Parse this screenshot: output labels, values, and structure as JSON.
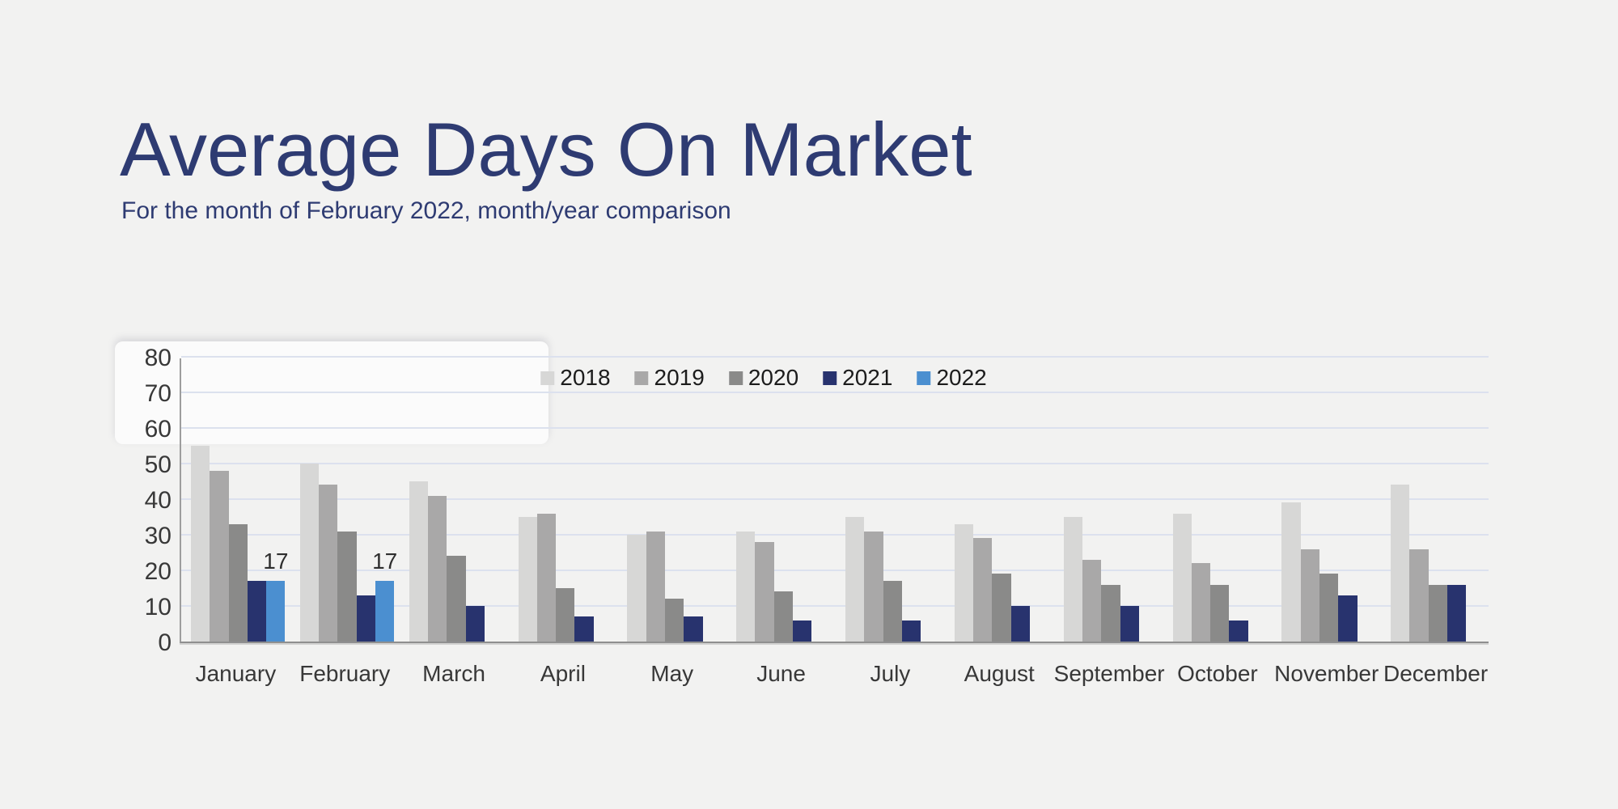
{
  "header": {
    "title": "Average Days On Market",
    "subtitle": "For the month of February 2022, month/year comparison",
    "title_color": "#2e3b72"
  },
  "chart_data": {
    "type": "bar",
    "title": "Average Days On Market",
    "subtitle": "For the month of February 2022, month/year comparison",
    "categories": [
      "January",
      "February",
      "March",
      "April",
      "May",
      "June",
      "July",
      "August",
      "September",
      "October",
      "November",
      "December"
    ],
    "series": [
      {
        "name": "2018",
        "color": "#d7d7d6",
        "values": [
          55,
          50,
          45,
          35,
          30,
          31,
          35,
          33,
          35,
          36,
          39,
          44
        ]
      },
      {
        "name": "2019",
        "color": "#a9a8a8",
        "values": [
          48,
          44,
          41,
          36,
          31,
          28,
          31,
          29,
          23,
          22,
          26,
          26
        ]
      },
      {
        "name": "2020",
        "color": "#8a8a89",
        "values": [
          33,
          31,
          24,
          15,
          12,
          14,
          17,
          19,
          16,
          16,
          19,
          16
        ]
      },
      {
        "name": "2021",
        "color": "#28336e",
        "values": [
          17,
          13,
          10,
          7,
          7,
          6,
          6,
          10,
          10,
          6,
          13,
          16
        ]
      },
      {
        "name": "2022",
        "color": "#4b8fd0",
        "values": [
          17,
          17,
          null,
          null,
          null,
          null,
          null,
          null,
          null,
          null,
          null,
          null
        ],
        "show_value_labels": true
      }
    ],
    "data_labels": [
      {
        "series": "2022",
        "category": "January",
        "text": "17"
      },
      {
        "series": "2022",
        "category": "February",
        "text": "17"
      }
    ],
    "ylabel": "",
    "xlabel": "",
    "ylim": [
      0,
      80
    ],
    "yticks": [
      0,
      10,
      20,
      30,
      40,
      50,
      60,
      70,
      80
    ],
    "grid": true,
    "legend_position": "top-center",
    "legend_entries": [
      "2018",
      "2019",
      "2020",
      "2021",
      "2022"
    ]
  }
}
